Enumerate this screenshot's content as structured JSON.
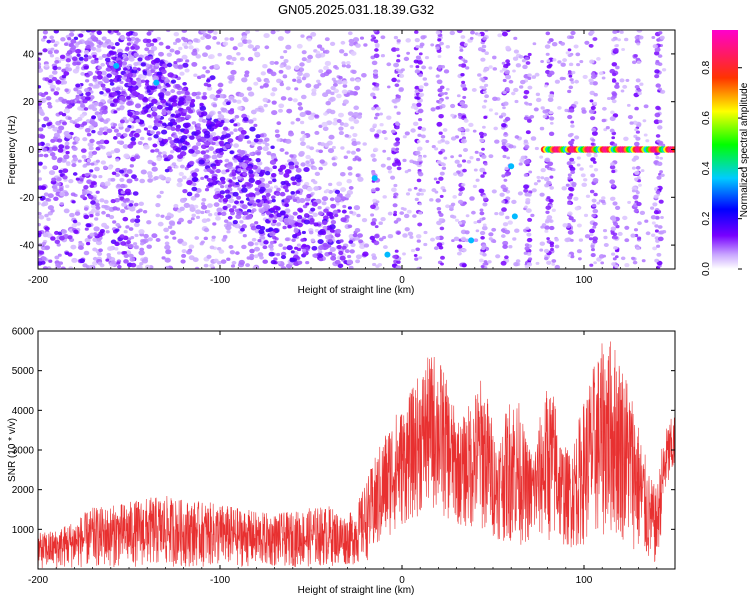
{
  "title": "GN05.2025.031.18.39.G32",
  "chart_data": [
    {
      "type": "heatmap",
      "title": "",
      "xlabel": "Height of straight line (km)",
      "ylabel": "Frequency (Hz)",
      "xlim": [
        -200,
        150
      ],
      "ylim": [
        -50,
        50
      ],
      "x_ticks": [
        -200,
        -100,
        0,
        100
      ],
      "y_ticks": [
        -40,
        -20,
        0,
        20,
        40
      ],
      "colorbar": {
        "label": "Normalized spectral amplitude",
        "range": [
          0,
          0.95
        ],
        "ticks": [
          "0.0",
          "0.2",
          "0.4",
          "0.6",
          "0.8"
        ],
        "colors": [
          "#ffffff",
          "#7700ff",
          "#0000ff",
          "#00ffff",
          "#00ff00",
          "#ffff00",
          "#ff0000",
          "#ff00cc"
        ]
      },
      "features": [
        {
          "name": "diagonal band",
          "x_range": [
            -160,
            -40
          ],
          "y_range": [
            40,
            -45
          ],
          "amplitude": 0.15
        },
        {
          "name": "striation family",
          "x_range": [
            -15,
            145
          ],
          "slope_hz_per_km": -1.1,
          "spacing_km": 12,
          "amplitude": 0.12
        },
        {
          "name": "horizontal line at 0 Hz",
          "x_range": [
            78,
            150
          ],
          "y": 0,
          "amplitude": 0.9
        },
        {
          "name": "hot spots",
          "points": [
            [
              -157,
              35
            ],
            [
              -135,
              28
            ],
            [
              -15,
              -12
            ],
            [
              -8,
              -44
            ],
            [
              38,
              -38
            ],
            [
              60,
              -7
            ],
            [
              62,
              -28
            ]
          ],
          "amplitude": 0.35
        }
      ]
    },
    {
      "type": "line",
      "title": "",
      "xlabel": "Height of straight line (km)",
      "ylabel": "SNR (10 * v/v)",
      "xlim": [
        -200,
        150
      ],
      "ylim": [
        0,
        6000
      ],
      "x_ticks": [
        -200,
        -100,
        0,
        100
      ],
      "y_ticks": [
        1000,
        2000,
        3000,
        4000,
        5000,
        6000
      ],
      "color": "#e83030",
      "envelope_upper": [
        [
          -200,
          900
        ],
        [
          -190,
          1000
        ],
        [
          -180,
          1250
        ],
        [
          -170,
          1550
        ],
        [
          -160,
          1600
        ],
        [
          -150,
          1700
        ],
        [
          -140,
          1800
        ],
        [
          -130,
          1850
        ],
        [
          -120,
          1750
        ],
        [
          -110,
          1700
        ],
        [
          -100,
          1650
        ],
        [
          -90,
          1550
        ],
        [
          -80,
          1450
        ],
        [
          -70,
          1400
        ],
        [
          -60,
          1450
        ],
        [
          -50,
          1550
        ],
        [
          -40,
          1600
        ],
        [
          -35,
          1450
        ],
        [
          -30,
          1350
        ],
        [
          -25,
          1600
        ],
        [
          -20,
          2200
        ],
        [
          -15,
          2800
        ],
        [
          -10,
          3400
        ],
        [
          -5,
          3900
        ],
        [
          0,
          4100
        ],
        [
          5,
          4500
        ],
        [
          10,
          5000
        ],
        [
          15,
          5400
        ],
        [
          18,
          5500
        ],
        [
          22,
          5200
        ],
        [
          28,
          4200
        ],
        [
          32,
          3700
        ],
        [
          38,
          4300
        ],
        [
          44,
          4900
        ],
        [
          48,
          4200
        ],
        [
          52,
          3200
        ],
        [
          55,
          3600
        ],
        [
          60,
          4500
        ],
        [
          64,
          4300
        ],
        [
          68,
          3300
        ],
        [
          72,
          3000
        ],
        [
          76,
          3900
        ],
        [
          80,
          4700
        ],
        [
          84,
          4400
        ],
        [
          88,
          3200
        ],
        [
          92,
          3000
        ],
        [
          96,
          3600
        ],
        [
          100,
          4300
        ],
        [
          104,
          5000
        ],
        [
          108,
          5500
        ],
        [
          112,
          5900
        ],
        [
          116,
          5800
        ],
        [
          120,
          5400
        ],
        [
          124,
          4900
        ],
        [
          128,
          4200
        ],
        [
          132,
          3200
        ],
        [
          136,
          2400
        ],
        [
          140,
          2000
        ],
        [
          143,
          3200
        ],
        [
          146,
          3700
        ],
        [
          150,
          3900
        ]
      ],
      "envelope_lower": [
        [
          -200,
          0
        ],
        [
          -150,
          50
        ],
        [
          -100,
          50
        ],
        [
          -50,
          50
        ],
        [
          -25,
          100
        ],
        [
          -15,
          300
        ],
        [
          -5,
          900
        ],
        [
          5,
          1200
        ],
        [
          15,
          1500
        ],
        [
          25,
          1200
        ],
        [
          35,
          1000
        ],
        [
          45,
          900
        ],
        [
          55,
          700
        ],
        [
          65,
          600
        ],
        [
          75,
          700
        ],
        [
          85,
          600
        ],
        [
          95,
          500
        ],
        [
          105,
          700
        ],
        [
          115,
          800
        ],
        [
          125,
          600
        ],
        [
          135,
          100
        ],
        [
          140,
          50
        ],
        [
          145,
          1800
        ],
        [
          150,
          2400
        ]
      ]
    }
  ]
}
